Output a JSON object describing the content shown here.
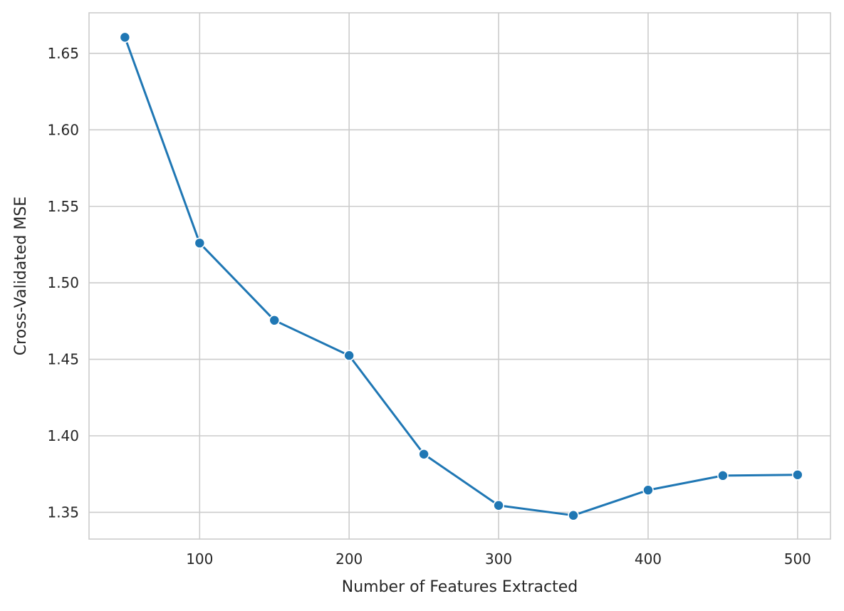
{
  "chart_data": {
    "type": "line",
    "title": "",
    "xlabel": "Number of Features Extracted",
    "ylabel": "Cross-Validated MSE",
    "xlim": [
      26,
      522
    ],
    "ylim": [
      1.3325,
      1.6765
    ],
    "x_ticks": [
      100,
      200,
      300,
      400,
      500
    ],
    "y_ticks": [
      1.35,
      1.4,
      1.45,
      1.5,
      1.55,
      1.6,
      1.65
    ],
    "x_tick_labels": [
      "100",
      "200",
      "300",
      "400",
      "500"
    ],
    "y_tick_labels": [
      "1.35",
      "1.40",
      "1.45",
      "1.50",
      "1.55",
      "1.60",
      "1.65"
    ],
    "grid": true,
    "series": [
      {
        "color": "#1f77b4",
        "marker": "circle",
        "x": [
          50,
          100,
          150,
          200,
          250,
          300,
          350,
          400,
          450,
          500
        ],
        "y": [
          1.6605,
          1.526,
          1.4755,
          1.4525,
          1.388,
          1.3545,
          1.348,
          1.3645,
          1.374,
          1.3745
        ]
      }
    ]
  }
}
